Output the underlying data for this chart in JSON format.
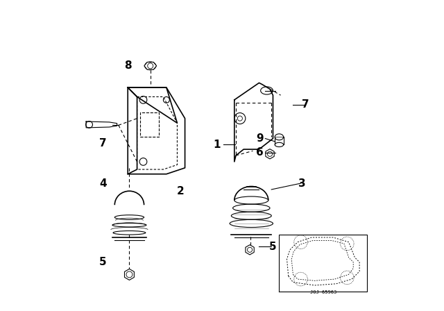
{
  "bg_color": "#ffffff",
  "line_color": "#000000",
  "label_color": "#000000",
  "fig_width": 6.4,
  "fig_height": 4.48,
  "dpi": 100
}
